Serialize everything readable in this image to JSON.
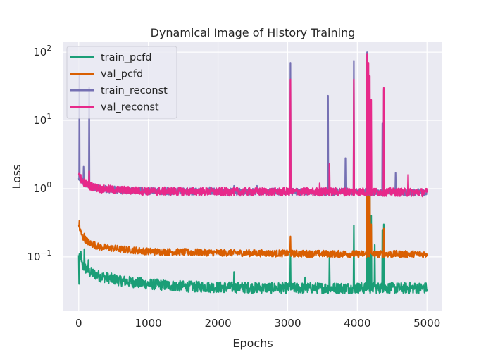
{
  "chart_data": {
    "type": "line",
    "title": "Dynamical Image of History Training",
    "xlabel": "Epochs",
    "ylabel": "Loss",
    "xlim": [
      -220,
      5220
    ],
    "ylim": [
      0.016,
      140
    ],
    "yscale": "log",
    "grid": true,
    "legend_position": "top-left",
    "x_ticks": [
      0,
      1000,
      2000,
      3000,
      4000,
      5000
    ],
    "x_tick_labels": [
      "0",
      "1000",
      "2000",
      "3000",
      "4000",
      "5000"
    ],
    "y_ticks": [
      0.1,
      1,
      10,
      100
    ],
    "y_tick_labels": [
      {
        "base": "10",
        "exp": "−1"
      },
      {
        "base": "10",
        "exp": "0"
      },
      {
        "base": "10",
        "exp": "1"
      },
      {
        "base": "10",
        "exp": "2"
      }
    ],
    "series": [
      {
        "name": "train_pcfd",
        "color": "#1b9e77",
        "baseline": [
          [
            0,
            0.1
          ],
          [
            50,
            0.075
          ],
          [
            150,
            0.06
          ],
          [
            300,
            0.052
          ],
          [
            600,
            0.045
          ],
          [
            1000,
            0.04
          ],
          [
            1500,
            0.037
          ],
          [
            2000,
            0.036
          ],
          [
            3000,
            0.035
          ],
          [
            4000,
            0.035
          ],
          [
            5000,
            0.035
          ]
        ],
        "noise": 0.08,
        "spikes": [
          [
            5,
            0.04
          ],
          [
            10,
            0.11
          ],
          [
            30,
            0.12
          ],
          [
            80,
            0.13
          ],
          [
            140,
            0.09
          ],
          [
            200,
            0.065
          ],
          [
            2230,
            0.06
          ],
          [
            3040,
            0.11
          ],
          [
            3250,
            0.05
          ],
          [
            3600,
            0.1
          ],
          [
            3950,
            0.29
          ],
          [
            4140,
            0.9
          ],
          [
            4160,
            1.2
          ],
          [
            4180,
            1.5
          ],
          [
            4200,
            0.4
          ],
          [
            4250,
            0.15
          ],
          [
            4360,
            0.25
          ],
          [
            4380,
            0.3
          ]
        ]
      },
      {
        "name": "val_pcfd",
        "color": "#d95f02",
        "baseline": [
          [
            0,
            0.28
          ],
          [
            50,
            0.2
          ],
          [
            150,
            0.16
          ],
          [
            300,
            0.14
          ],
          [
            600,
            0.13
          ],
          [
            1000,
            0.12
          ],
          [
            2000,
            0.115
          ],
          [
            3000,
            0.112
          ],
          [
            4000,
            0.11
          ],
          [
            5000,
            0.11
          ]
        ],
        "noise": 0.05,
        "spikes": [
          [
            10,
            0.34
          ],
          [
            30,
            0.24
          ],
          [
            80,
            0.22
          ],
          [
            3040,
            0.2
          ],
          [
            4140,
            2.5
          ],
          [
            4160,
            5.0
          ],
          [
            4180,
            1.8
          ],
          [
            4200,
            0.3
          ],
          [
            4380,
            0.26
          ]
        ]
      },
      {
        "name": "train_reconst",
        "color": "#7570b3",
        "baseline": [
          [
            0,
            1.5
          ],
          [
            50,
            1.3
          ],
          [
            150,
            1.1
          ],
          [
            300,
            1.0
          ],
          [
            600,
            0.95
          ],
          [
            1000,
            0.92
          ],
          [
            2000,
            0.9
          ],
          [
            3000,
            0.9
          ],
          [
            4000,
            0.9
          ],
          [
            5000,
            0.88
          ]
        ],
        "noise": 0.05,
        "spikes": [
          [
            10,
            45
          ],
          [
            70,
            2.1
          ],
          [
            150,
            30
          ],
          [
            1880,
            1.05
          ],
          [
            2230,
            1.1
          ],
          [
            2560,
            1.1
          ],
          [
            3040,
            70
          ],
          [
            3580,
            23
          ],
          [
            3830,
            2.8
          ],
          [
            3950,
            75
          ],
          [
            4140,
            100
          ],
          [
            4360,
            9
          ],
          [
            4380,
            28
          ],
          [
            4550,
            1.7
          ]
        ]
      },
      {
        "name": "val_reconst",
        "color": "#e7298a",
        "baseline": [
          [
            0,
            1.5
          ],
          [
            50,
            1.3
          ],
          [
            150,
            1.1
          ],
          [
            300,
            1.0
          ],
          [
            600,
            0.95
          ],
          [
            1000,
            0.92
          ],
          [
            2000,
            0.9
          ],
          [
            3000,
            0.9
          ],
          [
            4000,
            0.9
          ],
          [
            5000,
            0.88
          ]
        ],
        "noise": 0.06,
        "spikes": [
          [
            30,
            1.6
          ],
          [
            150,
            1.8
          ],
          [
            3040,
            40
          ],
          [
            3460,
            1.2
          ],
          [
            3600,
            2.3
          ],
          [
            3950,
            40
          ],
          [
            4140,
            95
          ],
          [
            4160,
            70
          ],
          [
            4180,
            45
          ],
          [
            4200,
            20
          ],
          [
            4380,
            30
          ],
          [
            4730,
            1.6
          ]
        ]
      }
    ]
  }
}
